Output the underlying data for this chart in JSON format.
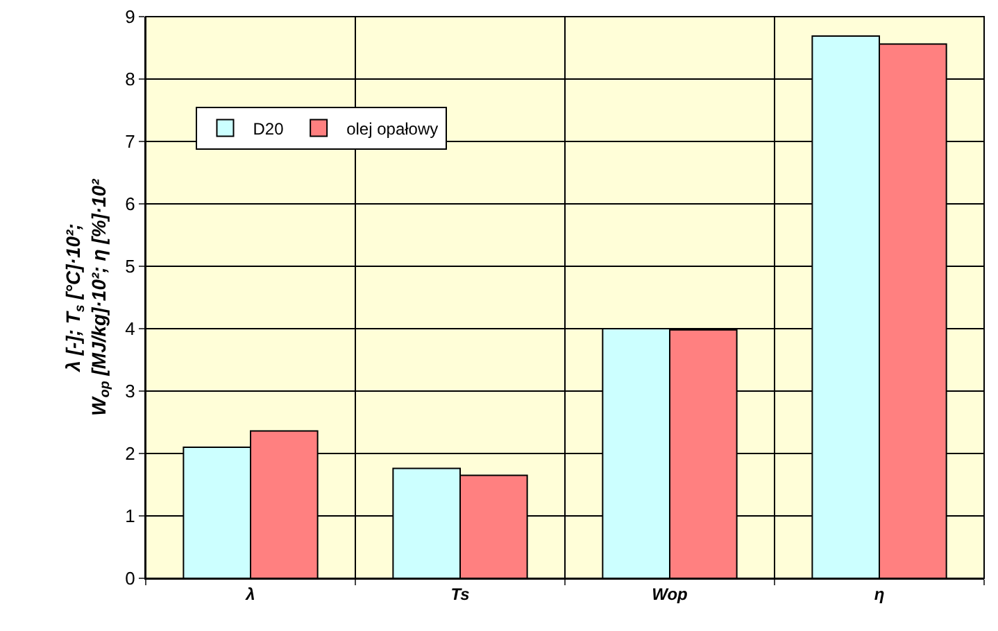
{
  "chart_data": {
    "type": "bar",
    "ylabel": "λ [-]; T$_{s}$ [°C]·10²;\nW$_{op}$ [MJ/kg]·10²; η [%]·10²",
    "categories": [
      "λ",
      "Ts",
      "Wop",
      "η"
    ],
    "series": [
      {
        "name": "D20",
        "color": "#ccffff",
        "values": [
          2.1,
          1.76,
          4.0,
          8.69
        ]
      },
      {
        "name": "olej opałowy",
        "color": "#ff8080",
        "values": [
          2.36,
          1.65,
          3.98,
          8.56
        ]
      }
    ],
    "ylim": [
      0,
      9
    ],
    "yticks": [
      0,
      1,
      2,
      3,
      4,
      5,
      6,
      7,
      8,
      9
    ],
    "grid": true,
    "legend": "top left"
  }
}
